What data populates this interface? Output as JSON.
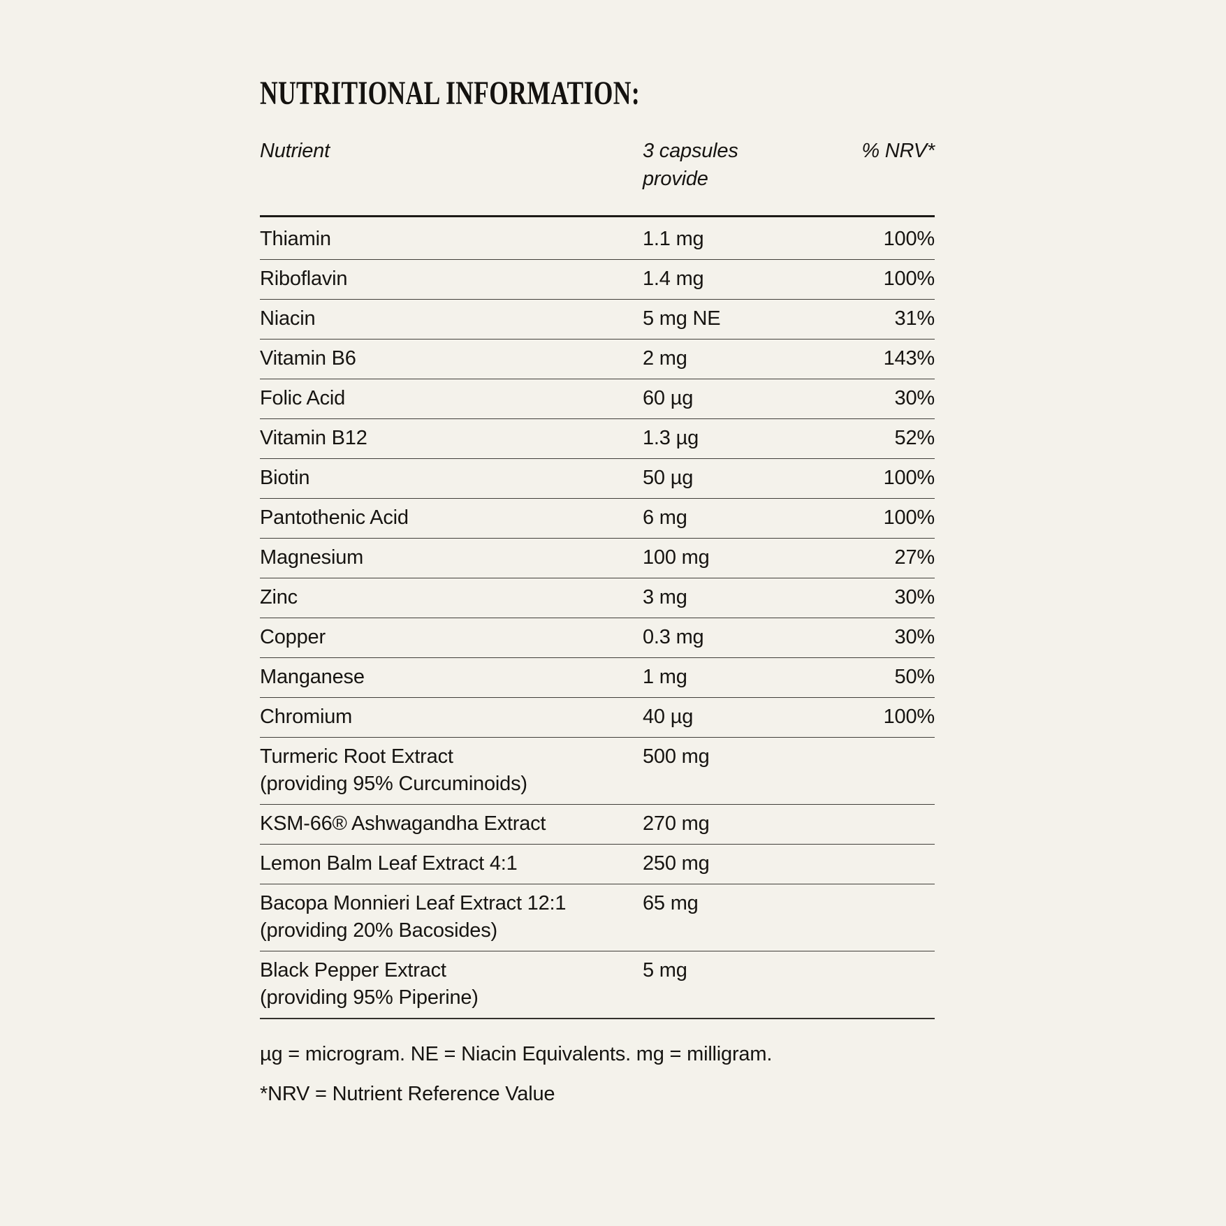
{
  "page": {
    "background_color": "#F4F2EB",
    "text_color": "#161411",
    "rule_color": "#33312c"
  },
  "title": "NUTRITIONAL INFORMATION:",
  "table": {
    "headers": {
      "nutrient": "Nutrient",
      "amount": "3 capsules\nprovide",
      "nrv": "% NRV*"
    },
    "rows": [
      {
        "nutrient": "Thiamin",
        "amount": "1.1 mg",
        "nrv": "100%"
      },
      {
        "nutrient": "Riboflavin",
        "amount": "1.4 mg",
        "nrv": "100%"
      },
      {
        "nutrient": "Niacin",
        "amount": "5 mg NE",
        "nrv": "31%"
      },
      {
        "nutrient": "Vitamin B6",
        "amount": "2 mg",
        "nrv": "143%"
      },
      {
        "nutrient": "Folic Acid",
        "amount": "60 µg",
        "nrv": "30%"
      },
      {
        "nutrient": "Vitamin B12",
        "amount": "1.3 µg",
        "nrv": "52%"
      },
      {
        "nutrient": "Biotin",
        "amount": "50 µg",
        "nrv": "100%"
      },
      {
        "nutrient": "Pantothenic Acid",
        "amount": "6 mg",
        "nrv": "100%"
      },
      {
        "nutrient": "Magnesium",
        "amount": "100 mg",
        "nrv": "27%"
      },
      {
        "nutrient": "Zinc",
        "amount": "3 mg",
        "nrv": "30%"
      },
      {
        "nutrient": "Copper",
        "amount": "0.3 mg",
        "nrv": "30%"
      },
      {
        "nutrient": "Manganese",
        "amount": "1 mg",
        "nrv": "50%"
      },
      {
        "nutrient": "Chromium",
        "amount": "40 µg",
        "nrv": "100%"
      },
      {
        "nutrient": "Turmeric Root Extract\n(providing 95% Curcuminoids)",
        "amount": "500 mg",
        "nrv": ""
      },
      {
        "nutrient": "KSM-66® Ashwagandha Extract",
        "amount": "270 mg",
        "nrv": ""
      },
      {
        "nutrient": "Lemon Balm Leaf Extract 4:1",
        "amount": "250 mg",
        "nrv": ""
      },
      {
        "nutrient": "Bacopa Monnieri Leaf Extract 12:1\n(providing 20% Bacosides)",
        "amount": "65 mg",
        "nrv": ""
      },
      {
        "nutrient": "Black Pepper Extract\n(providing 95% Piperine)",
        "amount": "5 mg",
        "nrv": ""
      }
    ]
  },
  "footnotes": [
    "µg = microgram. NE = Niacin Equivalents. mg = milligram.",
    "*NRV = Nutrient Reference Value"
  ]
}
